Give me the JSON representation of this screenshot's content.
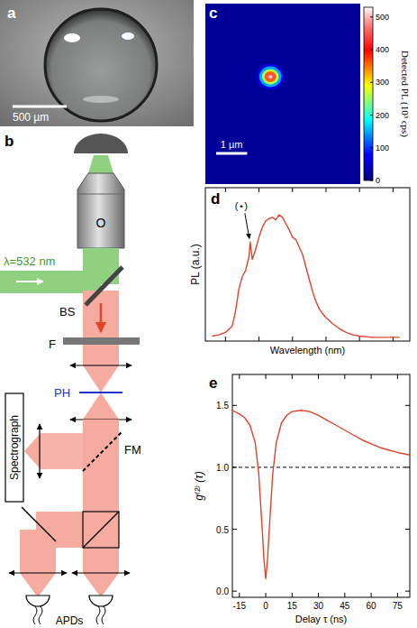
{
  "photo": {
    "label": "a",
    "scale_bar": "500 µm"
  },
  "setup": {
    "label": "b",
    "objective": "O",
    "laser": "λ=532 nm",
    "beam_splitter": "BS",
    "filter": "F",
    "pinhole": "PH",
    "flip_mirror": "FM",
    "spectrograph": "Spectrograph",
    "detectors": "APDs"
  },
  "pl_map": {
    "label": "c",
    "width_um": 5,
    "height_um": 5.8,
    "background": 15,
    "spot": {
      "x": 2.1,
      "y": 2.35,
      "rings": [
        {
          "r": 0.45,
          "value": 60
        },
        {
          "r": 0.36,
          "value": 150
        },
        {
          "r": 0.27,
          "value": 260
        },
        {
          "r": 0.19,
          "value": 360
        },
        {
          "r": 0.12,
          "value": 450
        },
        {
          "r": 0.06,
          "value": 510
        }
      ]
    },
    "scale_bar": {
      "label": "1 µm",
      "length": 1
    },
    "colorbar": {
      "label": "Detected PL (10³ cps)",
      "range": [
        0,
        530
      ],
      "ticks": [
        0,
        100,
        200,
        300,
        400,
        500
      ]
    }
  },
  "chart_data": [
    {
      "type": "line",
      "panel_label": "d",
      "x_label": "Wavelength (nm)",
      "y_label": "PL (a.u.)",
      "color": "#e0442a",
      "x": [
        580,
        590,
        600,
        610,
        615,
        620,
        625,
        630,
        635,
        637,
        640,
        645,
        650,
        655,
        660,
        665,
        670,
        675,
        680,
        685,
        690,
        695,
        700,
        705,
        710,
        715,
        720,
        725,
        730,
        735,
        740,
        745,
        750,
        760,
        770,
        780,
        790,
        800,
        820,
        850,
        860
      ],
      "values": [
        0.02,
        0.03,
        0.05,
        0.1,
        0.22,
        0.4,
        0.5,
        0.55,
        0.66,
        0.78,
        0.64,
        0.72,
        0.82,
        0.9,
        0.95,
        0.97,
        0.98,
        0.96,
        1.0,
        0.98,
        0.93,
        0.88,
        0.82,
        0.8,
        0.74,
        0.68,
        0.58,
        0.48,
        0.38,
        0.3,
        0.24,
        0.2,
        0.17,
        0.12,
        0.08,
        0.05,
        0.03,
        0.02,
        0.01,
        0.01,
        0.01
      ],
      "xlim": [
        570,
        875
      ],
      "ylim": [
        -0.02,
        1.22
      ],
      "xticks": [
        600,
        650,
        700,
        750,
        800,
        850
      ],
      "tick_labels": false,
      "annotations": [
        {
          "text": "(⋆)",
          "x": 637,
          "y": 0.78
        }
      ]
    },
    {
      "type": "line",
      "panel_label": "e",
      "x_label": "Delay τ (ns)",
      "y_label": "g⁽²⁾ (τ)",
      "color": "#e0442a",
      "x": [
        -19,
        -15,
        -12,
        -9,
        -6,
        -4,
        -2,
        -1,
        0,
        1,
        2,
        4,
        6,
        9,
        12,
        15,
        20,
        25,
        30,
        35,
        40,
        45,
        50,
        55,
        60,
        65,
        70,
        75,
        82
      ],
      "values": [
        1.46,
        1.43,
        1.4,
        1.34,
        1.2,
        0.95,
        0.5,
        0.25,
        0.1,
        0.25,
        0.5,
        0.95,
        1.2,
        1.36,
        1.42,
        1.45,
        1.46,
        1.45,
        1.42,
        1.38,
        1.34,
        1.3,
        1.26,
        1.22,
        1.19,
        1.16,
        1.14,
        1.12,
        1.1
      ],
      "xlim": [
        -19,
        82
      ],
      "ylim": [
        -0.05,
        1.75
      ],
      "xticks": [
        -15,
        0,
        15,
        30,
        45,
        60,
        75
      ],
      "yticks": [
        {
          "value": 0,
          "label": "0.0"
        },
        {
          "value": 0.5,
          "label": "0.5"
        },
        {
          "value": 1,
          "label": "1.0"
        },
        {
          "value": 1.5,
          "label": "1.5"
        }
      ],
      "reference_line": {
        "value": 1,
        "line_style": "dashed"
      }
    }
  ]
}
